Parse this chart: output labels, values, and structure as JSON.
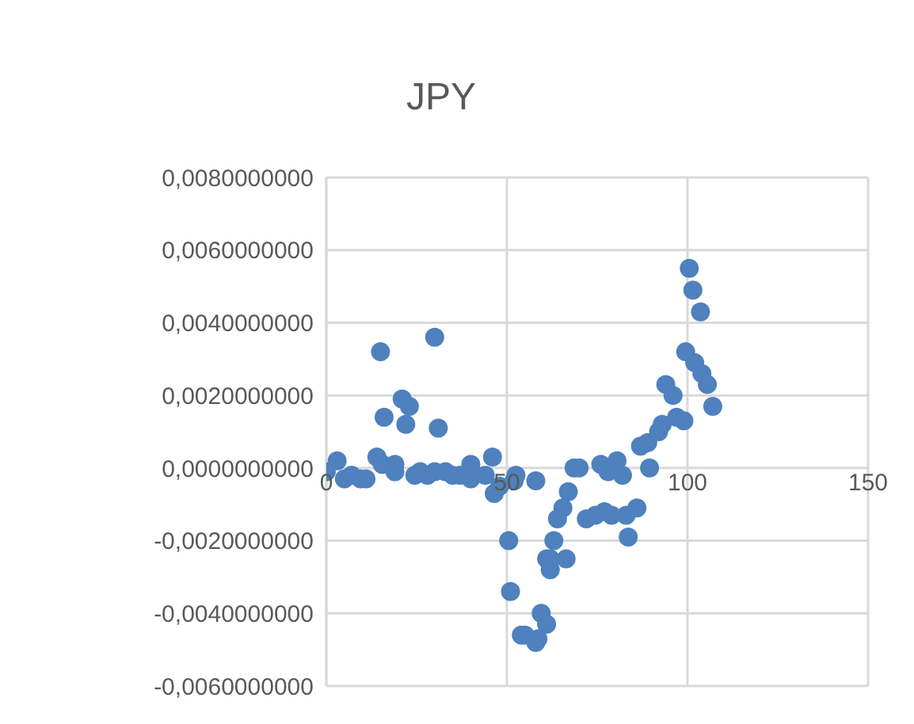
{
  "chart_data": {
    "type": "scatter",
    "title": "JPY",
    "xlim": [
      0,
      150
    ],
    "xticks": [
      0,
      50,
      100,
      150
    ],
    "ylim": [
      -0.006,
      0.008
    ],
    "yticks": [
      {
        "value": -0.006,
        "label": "-0,0060000000"
      },
      {
        "value": -0.004,
        "label": "-0,0040000000"
      },
      {
        "value": -0.002,
        "label": "-0,0020000000"
      },
      {
        "value": 0,
        "label": "0,0000000000"
      },
      {
        "value": 0.002,
        "label": "0,0020000000"
      },
      {
        "value": 0.004,
        "label": "0,0040000000"
      },
      {
        "value": 0.006,
        "label": "0,0060000000"
      },
      {
        "value": 0.008,
        "label": "0,0080000000"
      }
    ],
    "grid": true,
    "marker": "circle",
    "color": "#4e81bd",
    "x": [
      0,
      3,
      5,
      7,
      9.5,
      11,
      14,
      15.5,
      19,
      19,
      24.5,
      26,
      28,
      30,
      33,
      35,
      37,
      40,
      40,
      44,
      46,
      46.5,
      48,
      50.5,
      51,
      52,
      52.5,
      54,
      55,
      58,
      58,
      58.6,
      59.5,
      61,
      61,
      62,
      62,
      63,
      64,
      65.5,
      66.4,
      67,
      68.6,
      70,
      72,
      74.5,
      76,
      77,
      78,
      79,
      80.5,
      82,
      83,
      83.6,
      86,
      87,
      89,
      89.5,
      92,
      93,
      94,
      96,
      97,
      99,
      99.5,
      100.5,
      101.5,
      102,
      103.6,
      104,
      105.5,
      107,
      15,
      30,
      21,
      23,
      16,
      22,
      31
    ],
    "values": [
      -0.0001,
      0.0002,
      -0.0003,
      -0.0002,
      -0.0003,
      -0.0003,
      0.0003,
      0.0001,
      -0.0001,
      0.0001,
      -0.0002,
      -0.0001,
      -0.0002,
      -0.0001,
      -0.0001,
      -0.0002,
      -0.0002,
      0.0001,
      -0.0003,
      -0.0002,
      0.0003,
      -0.0007,
      -0.0005,
      -0.002,
      -0.0034,
      -0.00035,
      -0.0002,
      -0.0046,
      -0.0046,
      -0.00035,
      -0.0048,
      -0.0047,
      -0.004,
      -0.0043,
      -0.0025,
      -0.0025,
      -0.0028,
      -0.002,
      -0.0014,
      -0.0011,
      -0.0025,
      -0.00065,
      0,
      0,
      -0.0014,
      -0.0013,
      0.0001,
      -0.0012,
      -0.0001,
      -0.0013,
      0.0002,
      -0.0002,
      -0.0013,
      -0.0019,
      -0.0011,
      0.0006,
      0.0007,
      0,
      0.001,
      0.0012,
      0.0023,
      0.002,
      0.0014,
      0.0013,
      0.0032,
      0.0055,
      0.0049,
      0.0029,
      0.0043,
      0.0026,
      0.0023,
      0.0017,
      0.0032,
      0.0036,
      0.0019,
      0.0017,
      0.0014,
      0.0012,
      0.0011
    ]
  }
}
